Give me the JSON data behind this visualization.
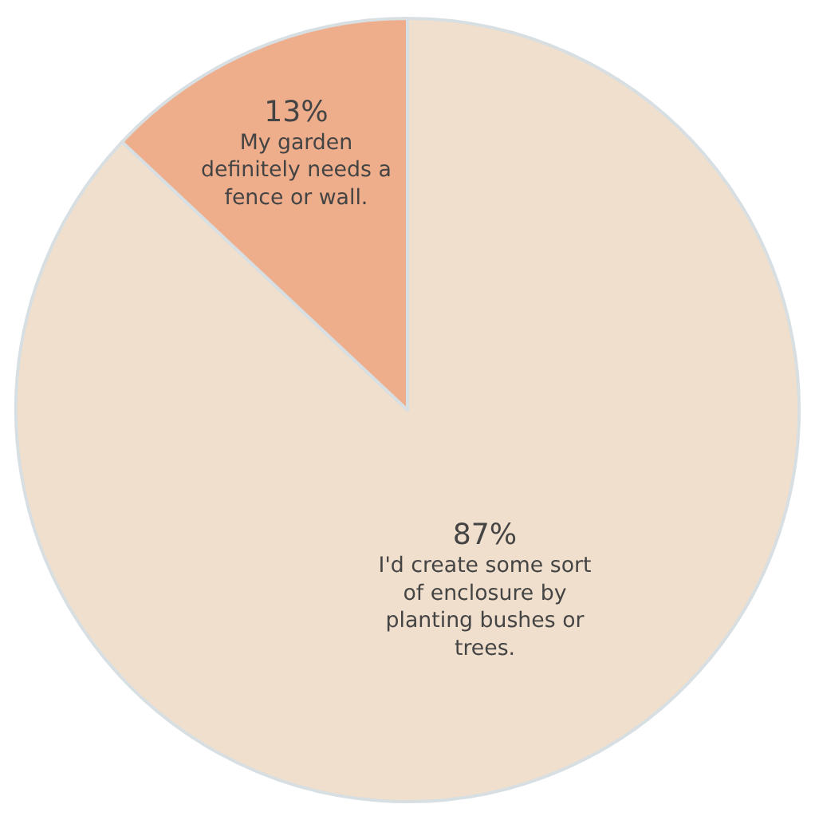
{
  "chart_data": {
    "type": "pie",
    "categories": [
      "I'd create some sort of enclosure by planting bushes or trees.",
      "My garden definitely needs a fence or wall."
    ],
    "values": [
      87,
      13
    ],
    "value_labels": [
      "87%",
      "13%"
    ],
    "colors": [
      "#f0dfcc",
      "#eeae8c"
    ],
    "legend": false
  }
}
